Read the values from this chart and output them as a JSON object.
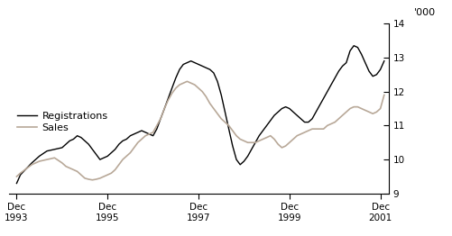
{
  "title": "",
  "ylabel_right": "'000",
  "ylim": [
    9,
    14
  ],
  "yticks": [
    9,
    10,
    11,
    12,
    13,
    14
  ],
  "xlim_start": 1993.75,
  "xlim_end": 2002.1,
  "xtick_positions": [
    1993.917,
    1995.917,
    1997.917,
    1999.917,
    2001.917
  ],
  "xtick_labels": [
    "Dec\n1993",
    "Dec\n1995",
    "Dec\n1997",
    "Dec\n1999",
    "Dec\n2001"
  ],
  "legend_labels": [
    "Registrations",
    "Sales"
  ],
  "reg_color": "#000000",
  "sales_color": "#b8a898",
  "background_color": "#ffffff",
  "reg_data": [
    [
      1993.917,
      9.3
    ],
    [
      1994.0,
      9.55
    ],
    [
      1994.25,
      9.9
    ],
    [
      1994.417,
      10.1
    ],
    [
      1994.583,
      10.25
    ],
    [
      1994.75,
      10.3
    ],
    [
      1994.917,
      10.35
    ],
    [
      1995.0,
      10.45
    ],
    [
      1995.083,
      10.55
    ],
    [
      1995.167,
      10.6
    ],
    [
      1995.25,
      10.7
    ],
    [
      1995.333,
      10.65
    ],
    [
      1995.417,
      10.55
    ],
    [
      1995.5,
      10.45
    ],
    [
      1995.583,
      10.3
    ],
    [
      1995.667,
      10.15
    ],
    [
      1995.75,
      10.0
    ],
    [
      1995.833,
      10.05
    ],
    [
      1995.917,
      10.1
    ],
    [
      1996.0,
      10.2
    ],
    [
      1996.083,
      10.3
    ],
    [
      1996.167,
      10.45
    ],
    [
      1996.25,
      10.55
    ],
    [
      1996.333,
      10.6
    ],
    [
      1996.417,
      10.7
    ],
    [
      1996.5,
      10.75
    ],
    [
      1996.583,
      10.8
    ],
    [
      1996.667,
      10.85
    ],
    [
      1996.75,
      10.8
    ],
    [
      1996.833,
      10.75
    ],
    [
      1996.917,
      10.7
    ],
    [
      1997.0,
      10.9
    ],
    [
      1997.083,
      11.2
    ],
    [
      1997.167,
      11.5
    ],
    [
      1997.25,
      11.8
    ],
    [
      1997.333,
      12.1
    ],
    [
      1997.417,
      12.4
    ],
    [
      1997.5,
      12.65
    ],
    [
      1997.583,
      12.8
    ],
    [
      1997.667,
      12.85
    ],
    [
      1997.75,
      12.9
    ],
    [
      1997.833,
      12.85
    ],
    [
      1997.917,
      12.8
    ],
    [
      1998.0,
      12.75
    ],
    [
      1998.083,
      12.7
    ],
    [
      1998.167,
      12.65
    ],
    [
      1998.25,
      12.55
    ],
    [
      1998.333,
      12.3
    ],
    [
      1998.417,
      11.9
    ],
    [
      1998.5,
      11.4
    ],
    [
      1998.583,
      10.9
    ],
    [
      1998.667,
      10.4
    ],
    [
      1998.75,
      10.0
    ],
    [
      1998.833,
      9.85
    ],
    [
      1998.917,
      9.95
    ],
    [
      1999.0,
      10.1
    ],
    [
      1999.083,
      10.3
    ],
    [
      1999.167,
      10.5
    ],
    [
      1999.25,
      10.7
    ],
    [
      1999.333,
      10.85
    ],
    [
      1999.417,
      11.0
    ],
    [
      1999.5,
      11.15
    ],
    [
      1999.583,
      11.3
    ],
    [
      1999.667,
      11.4
    ],
    [
      1999.75,
      11.5
    ],
    [
      1999.833,
      11.55
    ],
    [
      1999.917,
      11.5
    ],
    [
      2000.0,
      11.4
    ],
    [
      2000.083,
      11.3
    ],
    [
      2000.167,
      11.2
    ],
    [
      2000.25,
      11.1
    ],
    [
      2000.333,
      11.1
    ],
    [
      2000.417,
      11.2
    ],
    [
      2000.5,
      11.4
    ],
    [
      2000.583,
      11.6
    ],
    [
      2000.667,
      11.8
    ],
    [
      2000.75,
      12.0
    ],
    [
      2000.833,
      12.2
    ],
    [
      2000.917,
      12.4
    ],
    [
      2001.0,
      12.6
    ],
    [
      2001.083,
      12.75
    ],
    [
      2001.167,
      12.85
    ],
    [
      2001.25,
      13.2
    ],
    [
      2001.333,
      13.35
    ],
    [
      2001.417,
      13.3
    ],
    [
      2001.5,
      13.1
    ],
    [
      2001.583,
      12.85
    ],
    [
      2001.667,
      12.6
    ],
    [
      2001.75,
      12.45
    ],
    [
      2001.833,
      12.5
    ],
    [
      2001.917,
      12.65
    ],
    [
      2002.0,
      12.9
    ]
  ],
  "sales_data": [
    [
      1993.917,
      9.5
    ],
    [
      1994.0,
      9.6
    ],
    [
      1994.25,
      9.85
    ],
    [
      1994.417,
      9.95
    ],
    [
      1994.583,
      10.0
    ],
    [
      1994.75,
      10.05
    ],
    [
      1994.917,
      9.9
    ],
    [
      1995.0,
      9.8
    ],
    [
      1995.083,
      9.75
    ],
    [
      1995.167,
      9.7
    ],
    [
      1995.25,
      9.65
    ],
    [
      1995.333,
      9.55
    ],
    [
      1995.417,
      9.45
    ],
    [
      1995.5,
      9.42
    ],
    [
      1995.583,
      9.4
    ],
    [
      1995.667,
      9.42
    ],
    [
      1995.75,
      9.45
    ],
    [
      1995.833,
      9.5
    ],
    [
      1995.917,
      9.55
    ],
    [
      1996.0,
      9.6
    ],
    [
      1996.083,
      9.7
    ],
    [
      1996.167,
      9.85
    ],
    [
      1996.25,
      10.0
    ],
    [
      1996.333,
      10.1
    ],
    [
      1996.417,
      10.2
    ],
    [
      1996.5,
      10.35
    ],
    [
      1996.583,
      10.5
    ],
    [
      1996.667,
      10.6
    ],
    [
      1996.75,
      10.7
    ],
    [
      1996.833,
      10.75
    ],
    [
      1996.917,
      10.8
    ],
    [
      1997.0,
      11.0
    ],
    [
      1997.083,
      11.2
    ],
    [
      1997.167,
      11.5
    ],
    [
      1997.25,
      11.75
    ],
    [
      1997.333,
      11.95
    ],
    [
      1997.417,
      12.1
    ],
    [
      1997.5,
      12.2
    ],
    [
      1997.583,
      12.25
    ],
    [
      1997.667,
      12.3
    ],
    [
      1997.75,
      12.25
    ],
    [
      1997.833,
      12.2
    ],
    [
      1997.917,
      12.1
    ],
    [
      1998.0,
      12.0
    ],
    [
      1998.083,
      11.85
    ],
    [
      1998.167,
      11.65
    ],
    [
      1998.25,
      11.5
    ],
    [
      1998.333,
      11.35
    ],
    [
      1998.417,
      11.2
    ],
    [
      1998.5,
      11.1
    ],
    [
      1998.583,
      11.0
    ],
    [
      1998.667,
      10.85
    ],
    [
      1998.75,
      10.7
    ],
    [
      1998.833,
      10.6
    ],
    [
      1998.917,
      10.55
    ],
    [
      1999.0,
      10.5
    ],
    [
      1999.083,
      10.5
    ],
    [
      1999.167,
      10.5
    ],
    [
      1999.25,
      10.55
    ],
    [
      1999.333,
      10.6
    ],
    [
      1999.417,
      10.65
    ],
    [
      1999.5,
      10.7
    ],
    [
      1999.583,
      10.6
    ],
    [
      1999.667,
      10.45
    ],
    [
      1999.75,
      10.35
    ],
    [
      1999.833,
      10.4
    ],
    [
      1999.917,
      10.5
    ],
    [
      2000.0,
      10.6
    ],
    [
      2000.083,
      10.7
    ],
    [
      2000.167,
      10.75
    ],
    [
      2000.25,
      10.8
    ],
    [
      2000.333,
      10.85
    ],
    [
      2000.417,
      10.9
    ],
    [
      2000.5,
      10.9
    ],
    [
      2000.583,
      10.9
    ],
    [
      2000.667,
      10.9
    ],
    [
      2000.75,
      11.0
    ],
    [
      2000.833,
      11.05
    ],
    [
      2000.917,
      11.1
    ],
    [
      2001.0,
      11.2
    ],
    [
      2001.083,
      11.3
    ],
    [
      2001.167,
      11.4
    ],
    [
      2001.25,
      11.5
    ],
    [
      2001.333,
      11.55
    ],
    [
      2001.417,
      11.55
    ],
    [
      2001.5,
      11.5
    ],
    [
      2001.583,
      11.45
    ],
    [
      2001.667,
      11.4
    ],
    [
      2001.75,
      11.35
    ],
    [
      2001.833,
      11.4
    ],
    [
      2001.917,
      11.5
    ],
    [
      2002.0,
      11.9
    ]
  ]
}
